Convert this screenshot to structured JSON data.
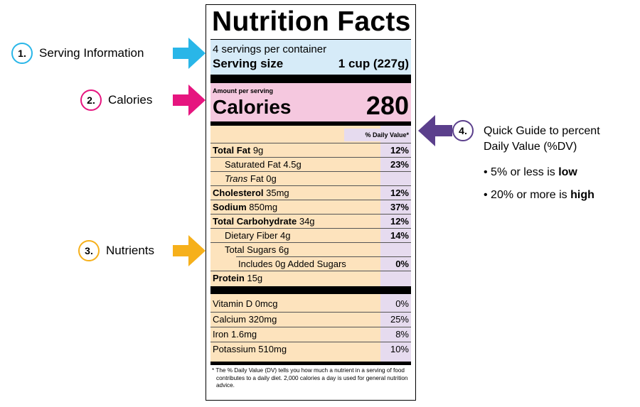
{
  "colors": {
    "serving_bg": "#d6ebf8",
    "calories_bg": "#f5c8df",
    "nutrients_bg": "#fde3bd",
    "dv_bg": "#e6dbef",
    "callout1": "#29b6e8",
    "callout2": "#e6157f",
    "callout3": "#f6b01b",
    "callout4": "#5b3f8c"
  },
  "label": {
    "title": "Nutrition Facts",
    "servings_per_container": "4 servings per container",
    "serving_size_label": "Serving size",
    "serving_size_value": "1 cup (227g)",
    "amount_per_serving": "Amount per serving",
    "calories_label": "Calories",
    "calories_value": "280",
    "dv_header": "% Daily Value*",
    "nutrients": [
      {
        "name": "Total Fat",
        "amount": "9g",
        "dv": "12%"
      },
      {
        "name": "Saturated Fat",
        "amount": "4.5g",
        "dv": "23%"
      },
      {
        "name": "Trans",
        "amount": "Fat 0g",
        "dv": ""
      },
      {
        "name": "Cholesterol",
        "amount": "35mg",
        "dv": "12%"
      },
      {
        "name": "Sodium",
        "amount": "850mg",
        "dv": "37%"
      },
      {
        "name": "Total Carbohydrate",
        "amount": "34g",
        "dv": "12%"
      },
      {
        "name": "Dietary Fiber",
        "amount": "4g",
        "dv": "14%"
      },
      {
        "name": "Total Sugars",
        "amount": "6g",
        "dv": ""
      },
      {
        "name": "Includes 0g Added Sugars",
        "amount": "",
        "dv": "0%"
      },
      {
        "name": "Protein",
        "amount": "15g",
        "dv": ""
      }
    ],
    "vitamins": [
      {
        "name": "Vitamin D 0mcg",
        "dv": "0%"
      },
      {
        "name": "Calcium 320mg",
        "dv": "25%"
      },
      {
        "name": "Iron 1.6mg",
        "dv": "8%"
      },
      {
        "name": "Potassium 510mg",
        "dv": "10%"
      }
    ],
    "footnote": "* The % Daily Value (DV) tells you how much a nutrient in a serving of food contributes to a daily diet. 2,000 calories a day is used for general nutrition advice."
  },
  "callouts": [
    {
      "number": "1.",
      "text": "Serving Information"
    },
    {
      "number": "2.",
      "text": "Calories"
    },
    {
      "number": "3.",
      "text": "Nutrients"
    },
    {
      "number": "4.",
      "text_line1": "Quick Guide to percent",
      "text_line2": "Daily Value (%DV)"
    }
  ],
  "guide_bullets": [
    {
      "prefix": "• 5% or less is ",
      "emphasis": "low"
    },
    {
      "prefix": "• 20% or more is ",
      "emphasis": "high"
    }
  ],
  "icons": [
    "arrow-right-icon",
    "arrow-left-icon"
  ]
}
